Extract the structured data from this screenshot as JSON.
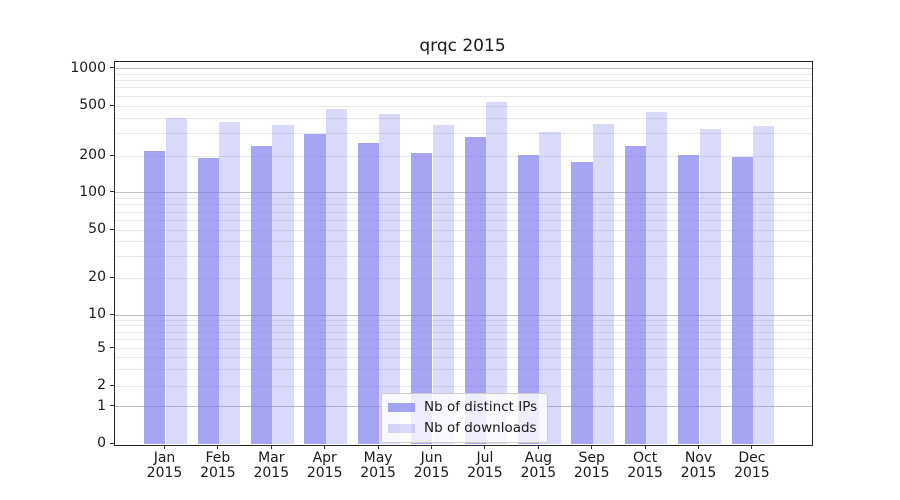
{
  "chart_data": {
    "type": "bar",
    "title": "qrqc 2015",
    "categories": [
      {
        "month": "Jan",
        "year": "2015"
      },
      {
        "month": "Feb",
        "year": "2015"
      },
      {
        "month": "Mar",
        "year": "2015"
      },
      {
        "month": "Apr",
        "year": "2015"
      },
      {
        "month": "May",
        "year": "2015"
      },
      {
        "month": "Jun",
        "year": "2015"
      },
      {
        "month": "Jul",
        "year": "2015"
      },
      {
        "month": "Aug",
        "year": "2015"
      },
      {
        "month": "Sep",
        "year": "2015"
      },
      {
        "month": "Oct",
        "year": "2015"
      },
      {
        "month": "Nov",
        "year": "2015"
      },
      {
        "month": "Dec",
        "year": "2015"
      }
    ],
    "series": [
      {
        "name": "Nb of distinct IPs",
        "color": "rgba(119,119,238,0.66)",
        "values": [
          218,
          192,
          240,
          300,
          255,
          212,
          285,
          205,
          178,
          240,
          203,
          196
        ]
      },
      {
        "name": "Nb of downloads",
        "color": "rgba(119,119,238,0.28)",
        "values": [
          400,
          375,
          355,
          470,
          435,
          355,
          540,
          310,
          360,
          445,
          330,
          345
        ]
      }
    ],
    "y_axis": {
      "scale": "symlog",
      "ticks": [
        0,
        1,
        2,
        5,
        10,
        20,
        50,
        100,
        200,
        500,
        1000
      ],
      "ylim": [
        0,
        1130
      ]
    },
    "grid": {
      "major_values": [
        1,
        10,
        100,
        1000
      ],
      "minor_values": [
        2,
        3,
        4,
        5,
        6,
        7,
        8,
        9,
        20,
        30,
        40,
        50,
        60,
        70,
        80,
        90,
        200,
        300,
        400,
        500,
        600,
        700,
        800,
        900
      ],
      "major_color": "#bfbfbf",
      "minor_color": "#e8e8e8"
    },
    "legend": {
      "position": "lower center"
    }
  }
}
